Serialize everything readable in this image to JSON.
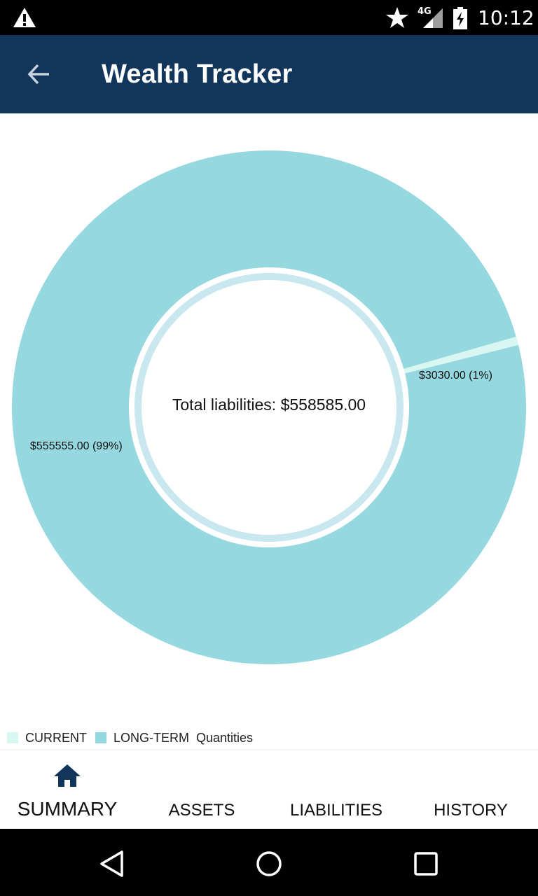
{
  "status_bar": {
    "network": "4G",
    "time": "10:12",
    "icons": [
      "warning-icon",
      "star-icon",
      "signal-icon",
      "battery-charging-icon"
    ]
  },
  "app_bar": {
    "title": "Wealth Tracker",
    "back_icon": "arrow-back-icon",
    "background": "#12365b"
  },
  "chart": {
    "center_label": "Total liabilities: $558585.00",
    "label_current": "$3030.00 (1%)",
    "label_longterm": "$555555.00 (99%)"
  },
  "chart_data": {
    "type": "pie",
    "variant": "donut",
    "categories": [
      "CURRENT",
      "LONG-TERM"
    ],
    "values": [
      3030.0,
      555555.0
    ],
    "percentages": [
      1,
      99
    ],
    "colors": [
      "#d8f7f3",
      "#96d8e0"
    ],
    "center_text": "Total liabilities: $558585.00",
    "legend_title": "Quantities",
    "legend_position": "bottom-left"
  },
  "legend": {
    "items": [
      {
        "label": "CURRENT",
        "color": "#d8f7f3"
      },
      {
        "label": "LONG-TERM",
        "color": "#96d8e0"
      }
    ],
    "caption": "Quantities"
  },
  "bottom_nav": {
    "active": "SUMMARY",
    "items": [
      {
        "label": "SUMMARY",
        "icon": "home-icon"
      },
      {
        "label": "ASSETS"
      },
      {
        "label": "LIABILITIES"
      },
      {
        "label": "HISTORY"
      }
    ]
  },
  "system_nav": {
    "icons": [
      "back-triangle-icon",
      "home-circle-icon",
      "recents-square-icon"
    ]
  }
}
